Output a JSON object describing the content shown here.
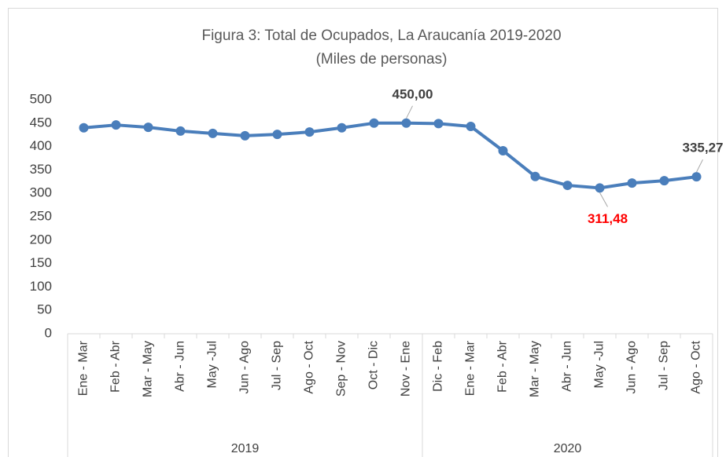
{
  "chart_data": {
    "type": "line",
    "title": "Figura 3: Total de Ocupados, La Araucanía 2019-2020",
    "subtitle": "(Miles de personas)",
    "categories": [
      "Ene - Mar",
      "Feb - Abr",
      "Mar - May",
      "Abr - Jun",
      "May -Jul",
      "Jun - Ago",
      "Jul - Sep",
      "Ago - Oct",
      "Sep - Nov",
      "Oct - Dic",
      "Nov - Ene",
      "Dic - Feb",
      "Ene - Mar",
      "Feb - Abr",
      "Mar - May",
      "Abr - Jun",
      "May -Jul",
      "Jun - Ago",
      "Jul - Sep",
      "Ago - Oct"
    ],
    "groups": [
      {
        "name": "2019",
        "count": 11
      },
      {
        "name": "2020",
        "count": 9
      }
    ],
    "series": [
      {
        "name": "Total de Ocupados",
        "color": "#4a7ebb",
        "values": [
          440,
          446,
          441,
          433,
          428,
          423,
          426,
          431,
          440,
          450,
          450.0,
          449,
          443,
          391,
          336,
          317,
          311.48,
          322,
          327,
          335.27
        ],
        "value_labels": [
          null,
          null,
          null,
          null,
          null,
          null,
          null,
          null,
          null,
          null,
          "450,00",
          null,
          null,
          null,
          null,
          null,
          "311,48",
          null,
          null,
          "335,27"
        ],
        "value_label_colors": [
          null,
          null,
          null,
          null,
          null,
          null,
          null,
          null,
          null,
          null,
          "#404040",
          null,
          null,
          null,
          null,
          null,
          "#ff0000",
          null,
          null,
          "#404040"
        ],
        "value_label_positions": [
          null,
          null,
          null,
          null,
          null,
          null,
          null,
          null,
          null,
          null,
          "above",
          null,
          null,
          null,
          null,
          null,
          "below",
          null,
          null,
          "above"
        ]
      }
    ],
    "ylim": [
      0,
      500
    ],
    "yticks": [
      0,
      50,
      100,
      150,
      200,
      250,
      300,
      350,
      400,
      450,
      500
    ],
    "grid": false
  }
}
